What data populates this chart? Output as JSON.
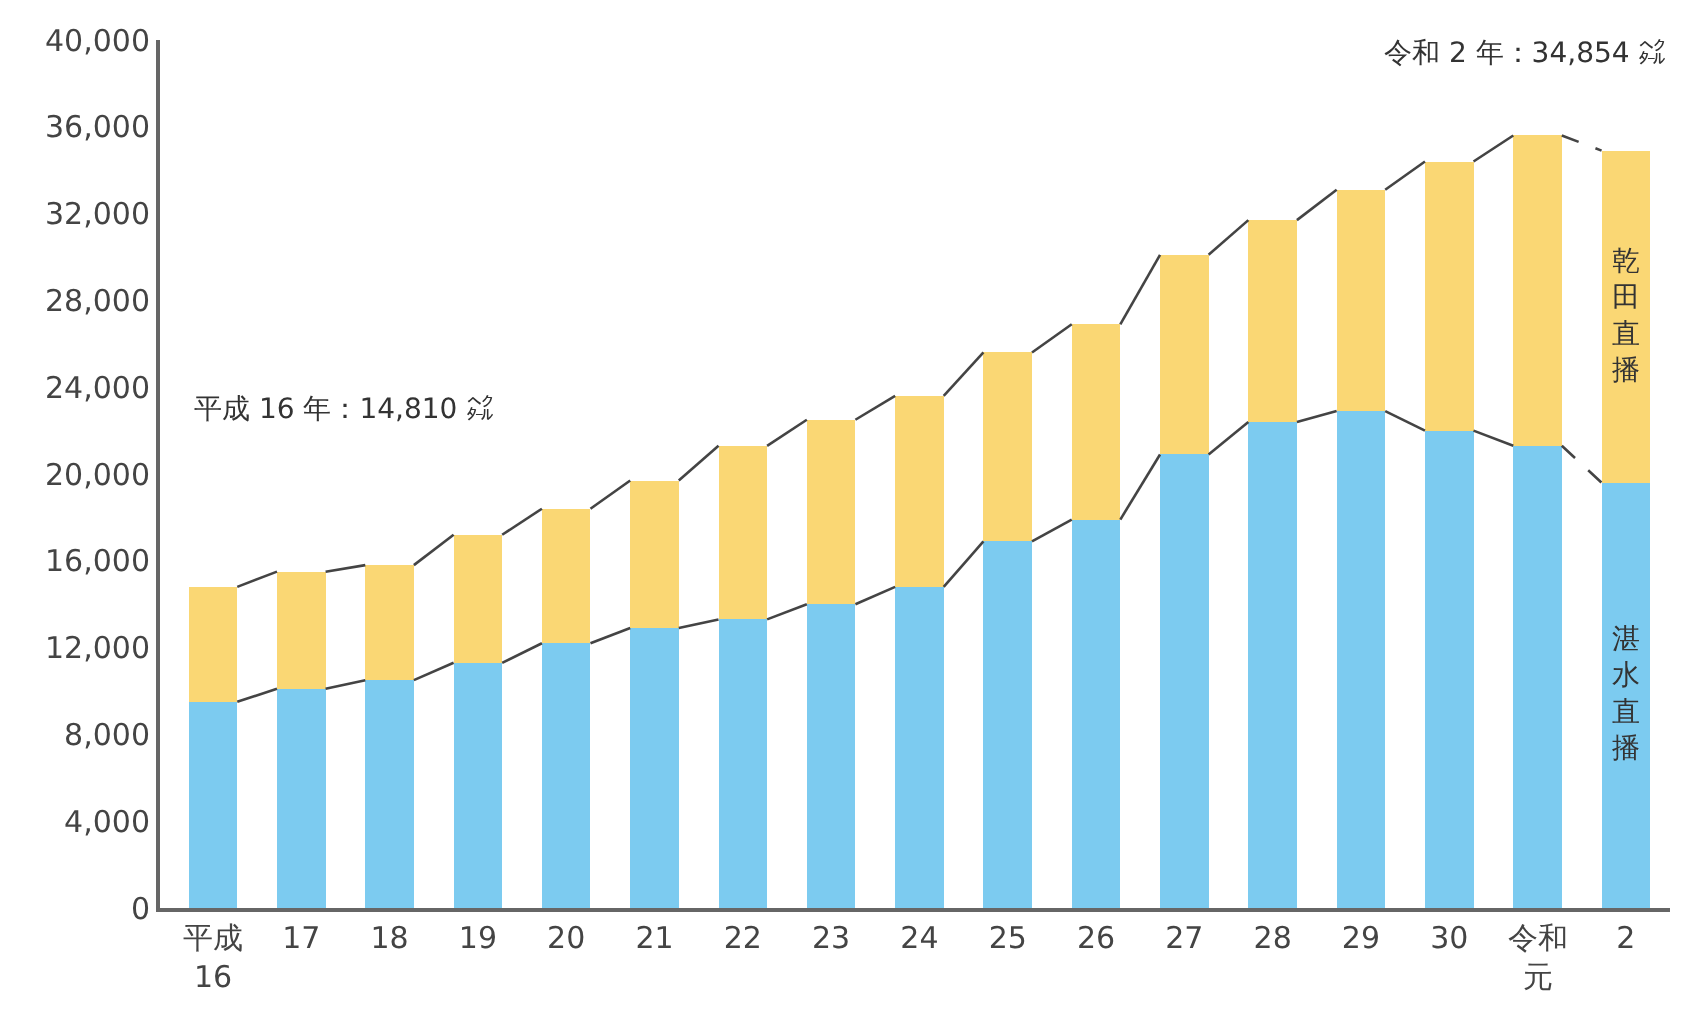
{
  "chart_data": {
    "type": "bar",
    "stacked": true,
    "categories": [
      "平成\n16",
      "17",
      "18",
      "19",
      "20",
      "21",
      "22",
      "23",
      "24",
      "25",
      "26",
      "27",
      "28",
      "29",
      "30",
      "令和元",
      "2"
    ],
    "series": [
      {
        "name": "湛水直播",
        "color": "#7ccbf0",
        "values": [
          9500,
          10100,
          10500,
          11300,
          12200,
          12900,
          13300,
          14000,
          14800,
          16900,
          17900,
          20900,
          22400,
          22900,
          22000,
          21300,
          19600
        ]
      },
      {
        "name": "乾田直播",
        "color": "#fad774",
        "values": [
          5300,
          5400,
          5300,
          5900,
          6200,
          6800,
          8000,
          8500,
          8800,
          8700,
          9000,
          9200,
          9300,
          10200,
          12400,
          14300,
          15300
        ]
      }
    ],
    "ylim": [
      0,
      40000
    ],
    "yticks": [
      {
        "value": 0,
        "label": "0"
      },
      {
        "value": 4000,
        "label": "4,000"
      },
      {
        "value": 8000,
        "label": "8,000"
      },
      {
        "value": 12000,
        "label": "12,000"
      },
      {
        "value": 16000,
        "label": "16,000"
      },
      {
        "value": 20000,
        "label": "20,000"
      },
      {
        "value": 24000,
        "label": "24,000"
      },
      {
        "value": 28000,
        "label": "28,000"
      },
      {
        "value": 32000,
        "label": "32,000"
      },
      {
        "value": 36000,
        "label": "36,000"
      },
      {
        "value": 40000,
        "label": "40,000"
      }
    ],
    "annotations": [
      "平成 16 年：14,810 ㌶",
      "令和 2 年：34,854 ㌶"
    ],
    "legend": false
  }
}
